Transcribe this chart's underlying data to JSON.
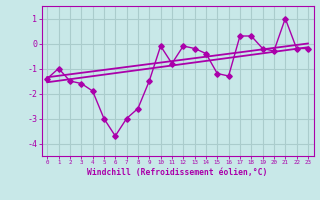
{
  "title": "",
  "xlabel": "Windchill (Refroidissement éolien,°C)",
  "ylabel": "",
  "background_color": "#c8e8e8",
  "grid_color": "#aacccc",
  "line_color": "#aa00aa",
  "x_data": [
    0,
    1,
    2,
    3,
    4,
    5,
    6,
    7,
    8,
    9,
    10,
    11,
    12,
    13,
    14,
    15,
    16,
    17,
    18,
    19,
    20,
    21,
    22,
    23
  ],
  "y_data": [
    -1.4,
    -1.0,
    -1.5,
    -1.6,
    -1.9,
    -3.0,
    -3.7,
    -3.0,
    -2.6,
    -1.5,
    -0.1,
    -0.8,
    -0.1,
    -0.2,
    -0.4,
    -1.2,
    -1.3,
    0.3,
    0.3,
    -0.2,
    -0.3,
    1.0,
    -0.2,
    -0.2
  ],
  "trend1_x": [
    0,
    23
  ],
  "trend1_y": [
    -1.55,
    -0.15
  ],
  "trend2_x": [
    0,
    23
  ],
  "trend2_y": [
    -1.35,
    0.0
  ],
  "ylim": [
    -4.5,
    1.5
  ],
  "xlim": [
    -0.5,
    23.5
  ],
  "yticks": [
    -4,
    -3,
    -2,
    -1,
    0,
    1
  ],
  "ytick_labels": [
    "-4",
    "-3",
    "-2",
    "-1",
    "0",
    "1"
  ],
  "xticks": [
    0,
    1,
    2,
    3,
    4,
    5,
    6,
    7,
    8,
    9,
    10,
    11,
    12,
    13,
    14,
    15,
    16,
    17,
    18,
    19,
    20,
    21,
    22,
    23
  ],
  "xtick_labels": [
    "0",
    "1",
    "2",
    "3",
    "4",
    "5",
    "6",
    "7",
    "8",
    "9",
    "10",
    "11",
    "12",
    "13",
    "14",
    "15",
    "16",
    "17",
    "18",
    "19",
    "20",
    "21",
    "22",
    "23"
  ]
}
